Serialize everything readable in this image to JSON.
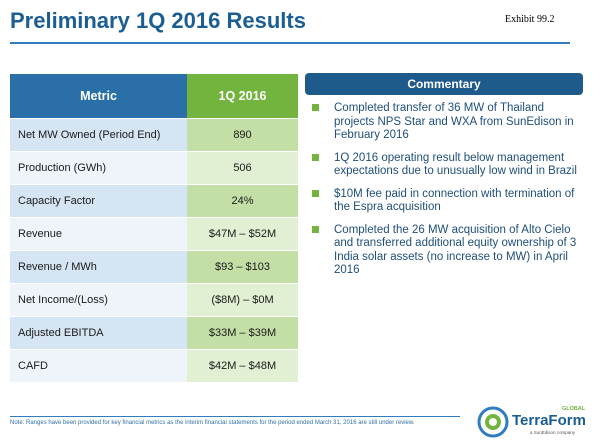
{
  "header": {
    "title": "Preliminary 1Q 2016 Results",
    "exhibit": "Exhibit 99.2"
  },
  "table": {
    "columns": [
      "Metric",
      "1Q 2016"
    ],
    "rows": [
      [
        "Net MW Owned (Period End)",
        "890"
      ],
      [
        "Production (GWh)",
        "506"
      ],
      [
        "Capacity Factor",
        "24%"
      ],
      [
        "Revenue",
        "$47M – $52M"
      ],
      [
        "Revenue / MWh",
        "$93 – $103"
      ],
      [
        "Net Income/(Loss)",
        "($8M) – $0M"
      ],
      [
        "Adjusted EBITDA",
        "$33M – $39M"
      ],
      [
        "CAFD",
        "$42M – $48M"
      ]
    ]
  },
  "commentary": {
    "title": "Commentary",
    "bullets": [
      "Completed transfer of 36 MW of Thailand projects NPS Star and WXA from SunEdison in February 2016",
      "1Q 2016 operating result below management expectations due to unusually low wind in Brazil",
      "$10M fee paid in connection with termination of the Espra acquisition",
      "Completed the 26 MW acquisition of Alto Cielo and transferred additional equity ownership of 3 India solar assets (no increase to MW) in April 2016"
    ]
  },
  "footer": {
    "note": "Note: Ranges have been provided for key financial metrics as the interim financial statements for the period ended March 31, 2016 are still under review.",
    "logo": "TerraForm",
    "logo_sub": "GLOBAL",
    "logo_tag": "a SunEdison company"
  }
}
